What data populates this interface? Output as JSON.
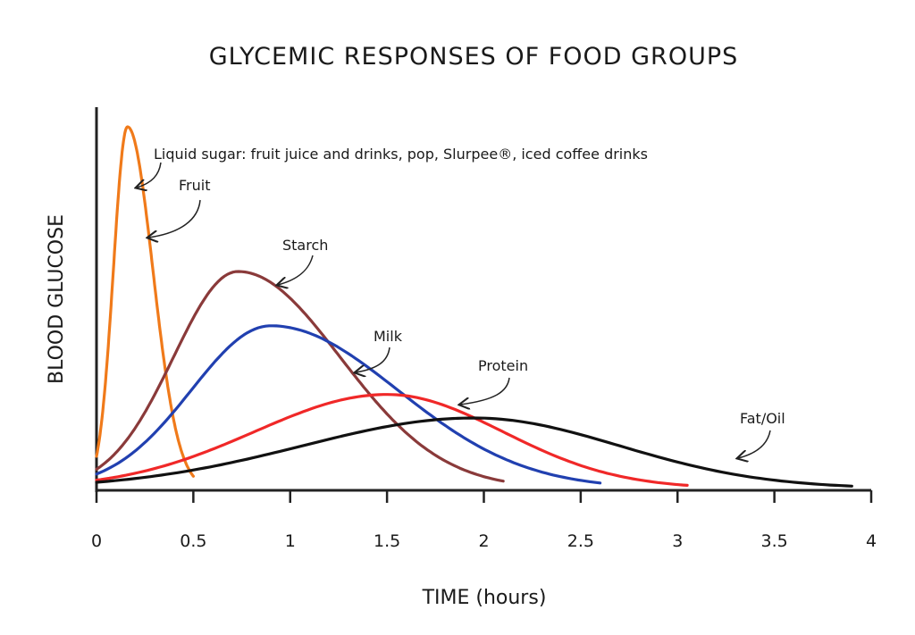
{
  "chart_data": {
    "type": "line",
    "title": "GLYCEMIC RESPONSES OF FOOD GROUPS",
    "xlabel": "TIME (hours)",
    "ylabel": "BLOOD GLUCOSE",
    "xlim": [
      0,
      4
    ],
    "ylim": [
      0,
      100
    ],
    "x_ticks": [
      "0",
      "0.5",
      "1",
      "1.5",
      "2",
      "2.5",
      "3",
      "3.5",
      "4"
    ],
    "grid": false,
    "series": [
      {
        "name": "Fruit",
        "color": "#f07a1a",
        "start": 0.0,
        "peak_x": 0.16,
        "peak_y": 100,
        "end": 0.5
      },
      {
        "name": "Starch",
        "color": "#8a3a3a",
        "start": 0.0,
        "peak_x": 0.73,
        "peak_y": 60,
        "end": 2.1
      },
      {
        "name": "Milk",
        "color": "#2140b0",
        "start": 0.0,
        "peak_x": 0.9,
        "peak_y": 45,
        "end": 2.6
      },
      {
        "name": "Protein",
        "color": "#f02828",
        "start": 0.0,
        "peak_x": 1.5,
        "peak_y": 26,
        "end": 3.05
      },
      {
        "name": "Fat/Oil",
        "color": "#111111",
        "start": 0.0,
        "peak_x": 1.95,
        "peak_y": 19.5,
        "end": 3.9
      }
    ],
    "annotations": {
      "liquid_sugar": "Liquid sugar: fruit juice and drinks, pop, Slurpee®, iced coffee drinks",
      "fruit": "Fruit",
      "starch": "Starch",
      "milk": "Milk",
      "protein": "Protein",
      "fat_oil": "Fat/Oil"
    }
  }
}
